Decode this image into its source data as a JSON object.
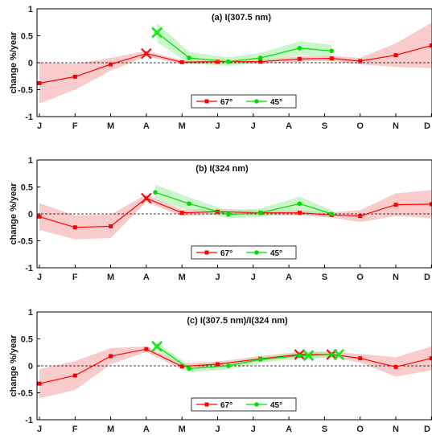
{
  "chart_data": [
    {
      "type": "line",
      "title": "(a) I(307.5 nm)",
      "ylabel": "change %/year",
      "ylim": [
        -1,
        1
      ],
      "yticks": [
        "-1",
        "-0.5",
        "0",
        "0.5",
        "1"
      ],
      "categories": [
        "J",
        "F",
        "M",
        "A",
        "M",
        "J",
        "J",
        "A",
        "S",
        "O",
        "N",
        "D"
      ],
      "legend": {
        "placement": "bottom-center",
        "entries": [
          "67°",
          "45°"
        ]
      },
      "series": [
        {
          "name": "67°",
          "color": "#ff0000",
          "band_color": "#f4a0a0",
          "x": [
            0,
            1,
            2,
            3,
            4,
            5,
            6.2,
            7.3,
            8.2,
            9,
            10,
            11
          ],
          "values": [
            -0.38,
            -0.26,
            -0.03,
            0.17,
            0.01,
            0.02,
            0.02,
            0.07,
            0.08,
            0.03,
            0.14,
            0.32
          ],
          "band_low": [
            -0.76,
            -0.5,
            -0.15,
            0.12,
            -0.03,
            -0.02,
            -0.02,
            0.02,
            0.03,
            -0.03,
            -0.08,
            -0.1
          ],
          "band_high": [
            0.0,
            -0.02,
            0.09,
            0.22,
            0.05,
            0.06,
            0.06,
            0.12,
            0.13,
            0.09,
            0.36,
            0.74
          ],
          "cross_x": [
            3
          ],
          "cross_y": [
            0.17
          ]
        },
        {
          "name": "45°",
          "color": "#00dd00",
          "band_color": "#a0eea0",
          "x": [
            3.3,
            4.2,
            5.3,
            6.2,
            7.3,
            8.2
          ],
          "values": [
            0.56,
            0.09,
            0.02,
            0.09,
            0.27,
            0.22
          ],
          "band_low": [
            0.38,
            -0.02,
            -0.06,
            0.0,
            0.14,
            0.11
          ],
          "band_high": [
            0.74,
            0.2,
            0.1,
            0.18,
            0.4,
            0.33
          ],
          "cross_x": [
            3.3
          ],
          "cross_y": [
            0.56
          ]
        }
      ]
    },
    {
      "type": "line",
      "title": "(b) I(324 nm)",
      "ylabel": "change %/year",
      "ylim": [
        -1,
        1
      ],
      "yticks": [
        "-1",
        "-0.5",
        "0",
        "0.5",
        "1"
      ],
      "categories": [
        "J",
        "F",
        "M",
        "A",
        "M",
        "J",
        "J",
        "A",
        "S",
        "O",
        "N",
        "D"
      ],
      "legend": {
        "placement": "bottom-center",
        "entries": [
          "67°",
          "45°"
        ]
      },
      "series": [
        {
          "name": "67°",
          "color": "#ff0000",
          "band_color": "#f4a0a0",
          "x": [
            0,
            1,
            2,
            3,
            4,
            5,
            6.2,
            7.3,
            8.2,
            9,
            10,
            11
          ],
          "values": [
            -0.05,
            -0.25,
            -0.23,
            0.29,
            0.02,
            0.04,
            0.02,
            0.02,
            -0.02,
            -0.04,
            0.17,
            0.18
          ],
          "band_low": [
            -0.3,
            -0.47,
            -0.45,
            0.22,
            -0.04,
            -0.01,
            -0.03,
            -0.03,
            -0.07,
            -0.15,
            -0.04,
            -0.08
          ],
          "band_high": [
            0.2,
            -0.03,
            -0.01,
            0.36,
            0.08,
            0.09,
            0.07,
            0.07,
            0.03,
            0.07,
            0.38,
            0.44
          ],
          "cross_x": [
            3
          ],
          "cross_y": [
            0.29
          ]
        },
        {
          "name": "45°",
          "color": "#00dd00",
          "band_color": "#a0eea0",
          "x": [
            3.25,
            4.2,
            5.3,
            6.2,
            7.3,
            8.2
          ],
          "values": [
            0.4,
            0.19,
            -0.01,
            0.02,
            0.19,
            0.0
          ],
          "band_low": [
            0.26,
            0.07,
            -0.08,
            -0.06,
            0.06,
            -0.07
          ],
          "band_high": [
            0.54,
            0.31,
            0.06,
            0.1,
            0.32,
            0.07
          ],
          "cross_x": [],
          "cross_y": []
        }
      ]
    },
    {
      "type": "line",
      "title": "(c) I(307.5 nm)/I(324 nm)",
      "ylabel": "change %/year",
      "ylim": [
        -1,
        1
      ],
      "yticks": [
        "-1",
        "-0.5",
        "0",
        "0.5",
        "1"
      ],
      "categories": [
        "J",
        "F",
        "M",
        "A",
        "M",
        "J",
        "J",
        "A",
        "S",
        "O",
        "N",
        "D"
      ],
      "legend": {
        "placement": "bottom-center",
        "entries": [
          "67°",
          "45°"
        ]
      },
      "series": [
        {
          "name": "67°",
          "color": "#ff0000",
          "band_color": "#f4a0a0",
          "x": [
            0,
            1,
            2,
            3,
            4,
            5,
            6.2,
            7.3,
            8.2,
            9,
            10,
            11
          ],
          "values": [
            -0.33,
            -0.18,
            0.18,
            0.31,
            -0.01,
            0.03,
            0.13,
            0.21,
            0.21,
            0.14,
            -0.02,
            0.14
          ],
          "band_low": [
            -0.6,
            -0.45,
            0.03,
            0.26,
            -0.07,
            -0.02,
            0.08,
            0.16,
            0.16,
            0.06,
            -0.2,
            -0.08
          ],
          "band_high": [
            -0.06,
            0.09,
            0.33,
            0.36,
            0.05,
            0.08,
            0.18,
            0.26,
            0.26,
            0.22,
            0.16,
            0.36
          ],
          "cross_x": [
            7.3,
            8.2
          ],
          "cross_y": [
            0.21,
            0.21
          ]
        },
        {
          "name": "45°",
          "color": "#00dd00",
          "band_color": "#a0eea0",
          "x": [
            3.3,
            4.2,
            5.3,
            6.2,
            7.3,
            8.2
          ],
          "values": [
            0.36,
            -0.05,
            0.0,
            0.12,
            0.19,
            0.21
          ],
          "band_low": [
            0.29,
            -0.12,
            -0.07,
            0.06,
            0.13,
            0.15
          ],
          "band_high": [
            0.43,
            0.02,
            0.07,
            0.18,
            0.25,
            0.27
          ],
          "cross_x": [
            3.3,
            7.55,
            8.4
          ],
          "cross_y": [
            0.36,
            0.19,
            0.21
          ]
        }
      ]
    }
  ]
}
